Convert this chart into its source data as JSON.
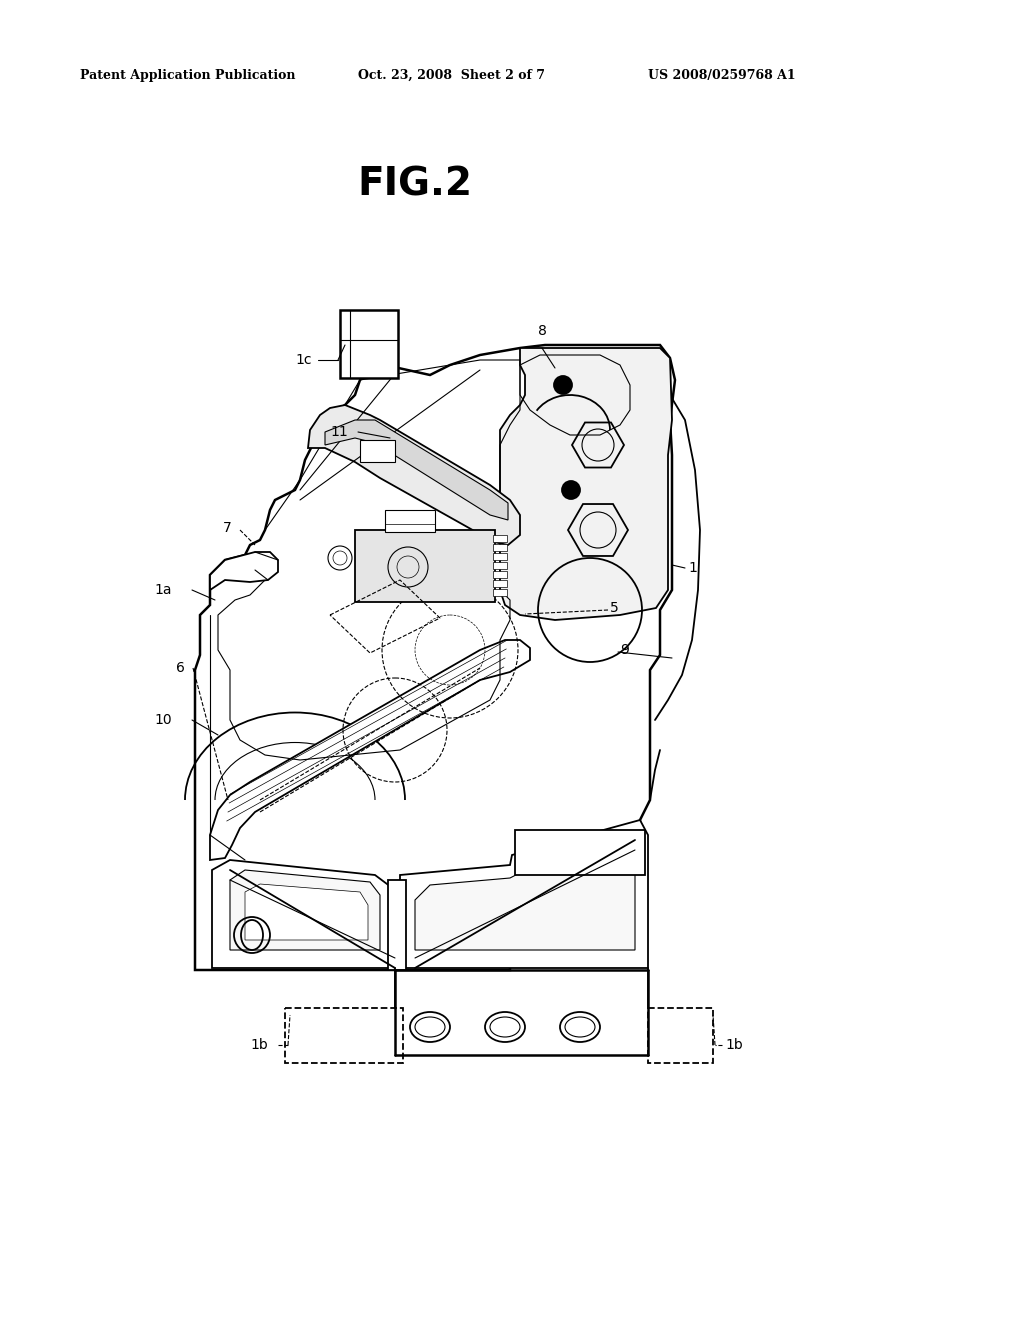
{
  "bg_color": "#ffffff",
  "header_left": "Patent Application Publication",
  "header_mid": "Oct. 23, 2008  Sheet 2 of 7",
  "header_right": "US 2008/0259768 A1",
  "fig_title": "FIG.2",
  "lw_thick": 1.8,
  "lw_main": 1.3,
  "lw_thin": 0.8,
  "lw_hair": 0.5
}
